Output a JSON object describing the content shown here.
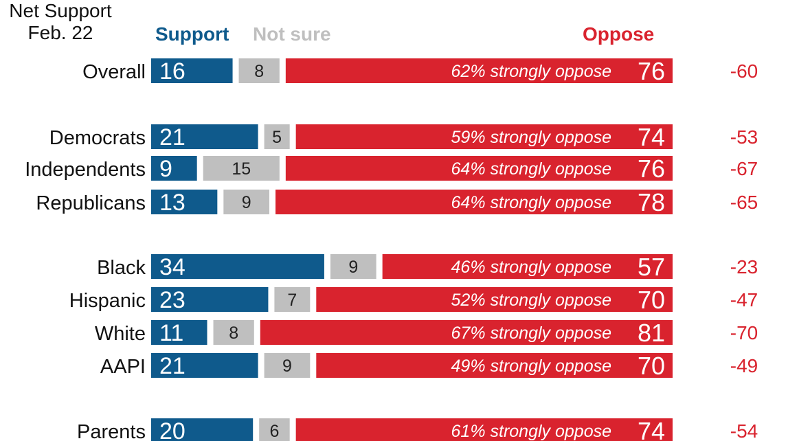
{
  "headers": {
    "support": "Support",
    "not_sure": "Not sure",
    "oppose": "Oppose",
    "net_line1": "Net Support",
    "net_line2": "Feb. 22"
  },
  "colors": {
    "support": "#0f5a8c",
    "not_sure": "#bfbfbf",
    "oppose": "#d9232e",
    "net": "#d9232e",
    "label": "#111111"
  },
  "chart_data": {
    "type": "bar",
    "stacked": true,
    "orientation": "horizontal",
    "groups": [
      [
        "Overall"
      ],
      [
        "Democrats",
        "Independents",
        "Republicans"
      ],
      [
        "Black",
        "Hispanic",
        "White",
        "AAPI"
      ],
      [
        "Parents"
      ]
    ],
    "categories": [
      "Overall",
      "Democrats",
      "Independents",
      "Republicans",
      "Black",
      "Hispanic",
      "White",
      "AAPI",
      "Parents"
    ],
    "series": [
      {
        "name": "Support",
        "values": [
          16,
          21,
          9,
          13,
          34,
          23,
          11,
          21,
          20
        ]
      },
      {
        "name": "Not sure",
        "values": [
          8,
          5,
          15,
          9,
          9,
          7,
          8,
          9,
          6
        ]
      },
      {
        "name": "Oppose",
        "values": [
          76,
          74,
          76,
          78,
          57,
          70,
          81,
          70,
          74
        ]
      }
    ],
    "strongly_oppose_labels": [
      "62% strongly oppose",
      "59% strongly oppose",
      "64% strongly oppose",
      "64% strongly oppose",
      "46% strongly oppose",
      "52% strongly oppose",
      "67% strongly oppose",
      "49% strongly oppose",
      "61% strongly oppose"
    ],
    "net_support": [
      "-60",
      "-53",
      "-67",
      "-65",
      "-23",
      "-47",
      "-70",
      "-49",
      "-54"
    ],
    "xlim": [
      0,
      100
    ]
  }
}
